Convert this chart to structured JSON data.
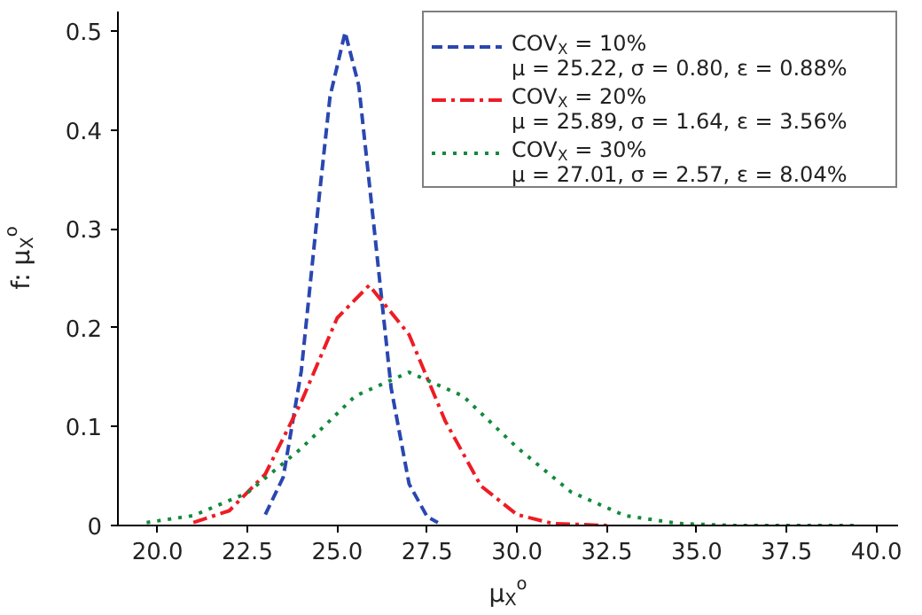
{
  "chart_data": {
    "type": "line",
    "xlabel": "μ$_{X}$$^{o}$",
    "ylabel": "f: μ$_{X}$$^{o}$",
    "xlim": [
      18.9,
      40.6
    ],
    "ylim": [
      0,
      0.52
    ],
    "xticks": [
      {
        "value": 20,
        "label": "20.0"
      },
      22.5,
      {
        "value": 25,
        "label": "25.0"
      },
      27.5,
      {
        "value": 30,
        "label": "30.0"
      },
      32.5,
      {
        "value": 35,
        "label": "35.0"
      },
      37.5,
      {
        "value": 40,
        "label": "40.0"
      }
    ],
    "yticks": [
      0,
      0.1,
      0.2,
      0.3,
      0.4,
      0.5
    ],
    "grid": false,
    "legend": "top right",
    "marker": "none",
    "series": [
      {
        "name": "COV$_{X}$ = 10%\nμ = 25.22, σ = 0.80, ε = 0.88%",
        "color": "#2a47b0",
        "line_style": "dashed",
        "x": [
          23.0,
          23.5,
          24.0,
          24.5,
          24.8,
          25.22,
          25.6,
          26.0,
          26.5,
          27.0,
          27.5,
          27.8
        ],
        "values": [
          0.011,
          0.049,
          0.156,
          0.333,
          0.434,
          0.499,
          0.445,
          0.31,
          0.139,
          0.042,
          0.009,
          0.003
        ]
      },
      {
        "name": "COV$_{X}$ = 20%\nμ = 25.89, σ = 1.64, ε = 3.56%",
        "color": "#ee1c25",
        "line_style": "dashdot",
        "x": [
          21.0,
          22.0,
          23.0,
          24.0,
          25.0,
          25.89,
          27.0,
          28.0,
          29.0,
          30.0,
          31.0,
          32.5
        ],
        "values": [
          0.003,
          0.015,
          0.052,
          0.125,
          0.21,
          0.243,
          0.193,
          0.106,
          0.04,
          0.011,
          0.002,
          0.0
        ]
      },
      {
        "name": "COV$_{X}$ = 30%\nμ = 27.01, σ = 2.57, ε = 8.04%",
        "color": "#138a3c",
        "line_style": "dotted",
        "x": [
          19.7,
          21.0,
          22.5,
          24.0,
          25.5,
          27.0,
          28.5,
          30.0,
          31.5,
          33.0,
          34.5,
          36.0,
          39.5
        ],
        "values": [
          0.003,
          0.01,
          0.033,
          0.078,
          0.131,
          0.155,
          0.131,
          0.079,
          0.034,
          0.01,
          0.002,
          0.0,
          0.0
        ]
      }
    ]
  }
}
